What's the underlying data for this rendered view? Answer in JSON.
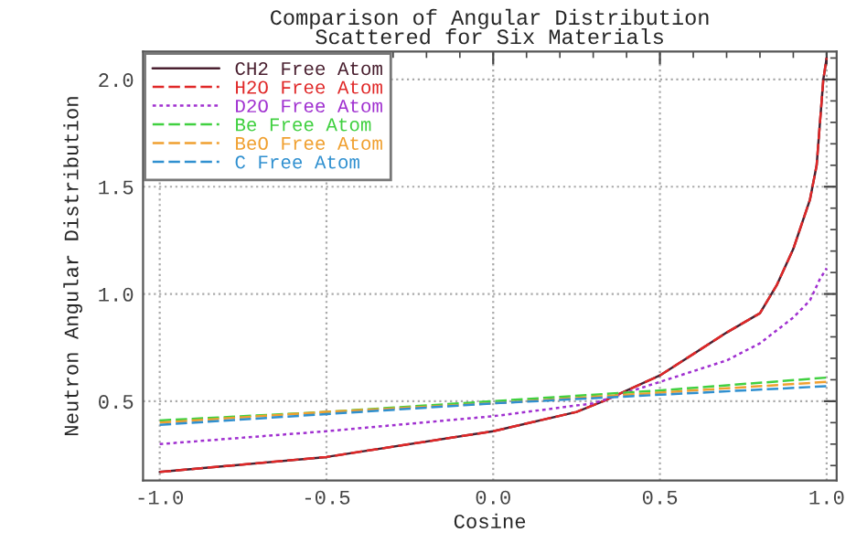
{
  "chart_data": {
    "type": "line",
    "title": "Comparison of Angular Distribution\nScattered for Six Materials",
    "xlabel": "Cosine",
    "ylabel": "Neutron Angular Distribution",
    "xlim": [
      -1.05,
      1.03
    ],
    "ylim": [
      0.13,
      2.13
    ],
    "xticks": [
      {
        "value": -1.0,
        "label": "-1.0"
      },
      {
        "value": -0.5,
        "label": "-0.5"
      },
      {
        "value": 0.0,
        "label": "0.0"
      },
      {
        "value": 0.5,
        "label": "0.5"
      },
      {
        "value": 1.0,
        "label": "1.0"
      }
    ],
    "yticks": [
      {
        "value": 0.5,
        "label": "0.5"
      },
      {
        "value": 1.0,
        "label": "1.0"
      },
      {
        "value": 1.5,
        "label": "1.5"
      },
      {
        "value": 2.0,
        "label": "2.0"
      }
    ],
    "grid": true,
    "legend": "top left",
    "series": [
      {
        "name": "CH2 Free Atom",
        "color": "#4a2030",
        "line_style": "solid",
        "x": [
          -1.0,
          -0.5,
          0.0,
          0.25,
          0.33,
          0.5,
          0.7,
          0.8,
          0.85,
          0.9,
          0.95,
          0.97,
          0.99,
          1.0
        ],
        "values": [
          0.17,
          0.24,
          0.36,
          0.45,
          0.5,
          0.62,
          0.82,
          0.91,
          1.04,
          1.21,
          1.44,
          1.6,
          2.0,
          2.1
        ]
      },
      {
        "name": "H2O Free Atom",
        "color": "#e02828",
        "line_style": "dashed",
        "x": [
          -1.0,
          -0.5,
          0.0,
          0.25,
          0.33,
          0.5,
          0.7,
          0.8,
          0.85,
          0.9,
          0.95,
          0.97,
          0.99,
          1.0
        ],
        "values": [
          0.17,
          0.24,
          0.36,
          0.45,
          0.5,
          0.62,
          0.82,
          0.91,
          1.04,
          1.21,
          1.44,
          1.6,
          2.0,
          2.1
        ]
      },
      {
        "name": "D2O Free Atom",
        "color": "#a030d0",
        "line_style": "dotted",
        "x": [
          -1.0,
          -0.5,
          0.0,
          0.3,
          0.5,
          0.7,
          0.8,
          0.9,
          0.95,
          0.98,
          1.0
        ],
        "values": [
          0.3,
          0.36,
          0.43,
          0.49,
          0.59,
          0.69,
          0.77,
          0.89,
          0.97,
          1.07,
          1.12
        ]
      },
      {
        "name": "Be Free Atom",
        "color": "#40d040",
        "line_style": "dashed",
        "x": [
          -1.0,
          -0.5,
          0.0,
          0.5,
          1.0
        ],
        "values": [
          0.41,
          0.45,
          0.5,
          0.55,
          0.61
        ]
      },
      {
        "name": "BeO Free Atom",
        "color": "#f0a030",
        "line_style": "dashed",
        "x": [
          -1.0,
          -0.5,
          0.0,
          0.5,
          1.0
        ],
        "values": [
          0.4,
          0.45,
          0.49,
          0.54,
          0.59
        ]
      },
      {
        "name": "C Free Atom",
        "color": "#3090d0",
        "line_style": "dashed",
        "x": [
          -1.0,
          -0.5,
          0.0,
          0.5,
          1.0
        ],
        "values": [
          0.39,
          0.44,
          0.49,
          0.53,
          0.57
        ]
      }
    ]
  }
}
